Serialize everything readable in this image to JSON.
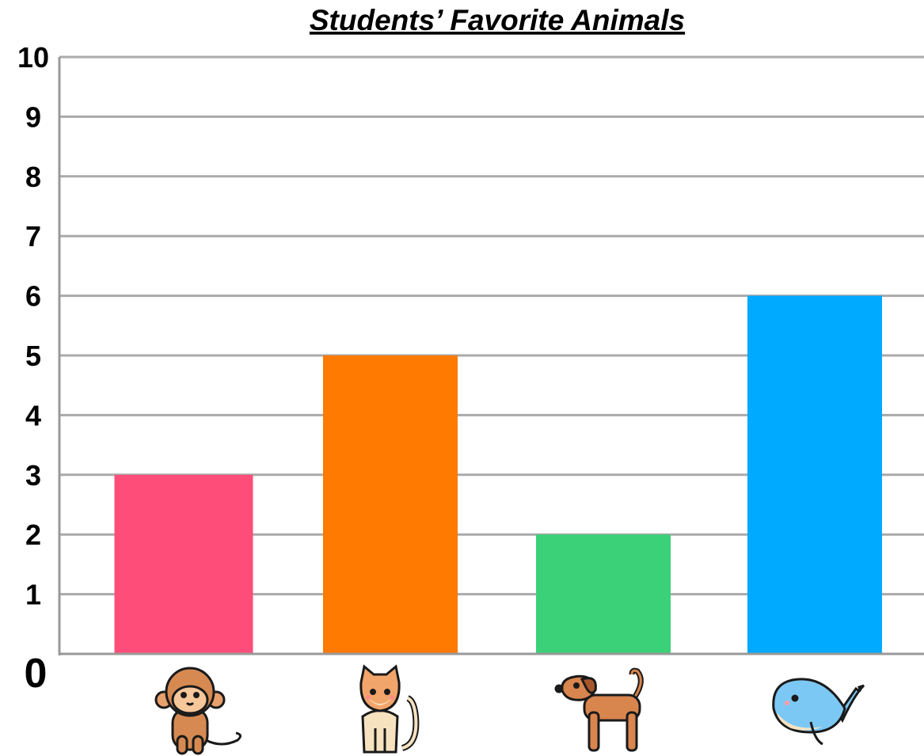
{
  "chart_data": {
    "type": "bar",
    "title": "Students’ Favorite Animals",
    "categories": [
      "monkey",
      "cat",
      "dog",
      "whale"
    ],
    "icons": [
      "monkey-icon",
      "cat-icon",
      "dog-icon",
      "whale-icon"
    ],
    "values": [
      3,
      5,
      2,
      6
    ],
    "colors": [
      "#ff4d79",
      "#ff7a00",
      "#3bd178",
      "#00aaff"
    ],
    "ylim": [
      0,
      10
    ],
    "y_ticks": [
      "0",
      "1",
      "2",
      "3",
      "4",
      "5",
      "6",
      "7",
      "8",
      "9",
      "10"
    ],
    "grid": true,
    "legend": "none"
  }
}
